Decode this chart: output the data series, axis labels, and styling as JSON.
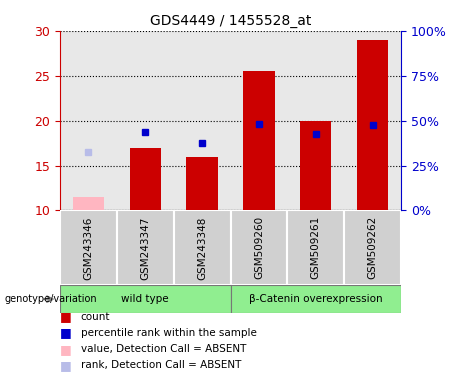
{
  "title": "GDS4449 / 1455528_at",
  "samples": [
    "GSM243346",
    "GSM243347",
    "GSM243348",
    "GSM509260",
    "GSM509261",
    "GSM509262"
  ],
  "count_values": [
    null,
    17.0,
    16.0,
    25.5,
    20.0,
    29.0
  ],
  "count_absent": [
    11.5,
    null,
    null,
    null,
    null,
    null
  ],
  "rank_values": [
    null,
    18.7,
    17.5,
    19.6,
    18.5,
    19.5
  ],
  "rank_absent": [
    16.5,
    null,
    null,
    null,
    null,
    null
  ],
  "ylim_left": [
    10,
    30
  ],
  "ylim_right": [
    0,
    100
  ],
  "yticks_left": [
    10,
    15,
    20,
    25,
    30
  ],
  "yticks_right": [
    0,
    25,
    50,
    75,
    100
  ],
  "ytick_labels_right": [
    "0%",
    "25%",
    "50%",
    "75%",
    "100%"
  ],
  "group_ranges": [
    [
      0,
      2,
      "wild type"
    ],
    [
      3,
      5,
      "β-Catenin overexpression"
    ]
  ],
  "bar_width": 0.55,
  "bar_color_count": "#cc0000",
  "bar_color_count_absent": "#ffb6c1",
  "square_color_rank": "#0000cc",
  "square_color_rank_absent": "#b8bce8",
  "plot_bg": "#e8e8e8",
  "sample_box_bg": "#d0d0d0",
  "group_bg": "#90EE90",
  "left_label_color": "#cc0000",
  "right_label_color": "#0000cc",
  "legend_items": [
    [
      "#cc0000",
      "count"
    ],
    [
      "#0000cc",
      "percentile rank within the sample"
    ],
    [
      "#ffb6c1",
      "value, Detection Call = ABSENT"
    ],
    [
      "#b8bce8",
      "rank, Detection Call = ABSENT"
    ]
  ]
}
